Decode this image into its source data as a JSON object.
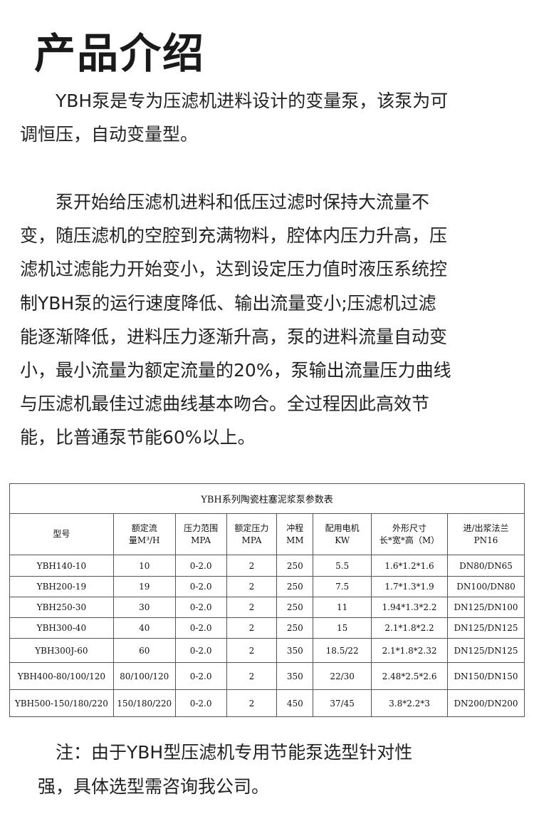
{
  "heading": "产品介绍",
  "para1": [
    "　　YBH泵是专为压滤机进料设计的变量泵，该泵为可",
    "调恒压，自动变量型。"
  ],
  "para2": [
    "　　泵开始给压滤机进料和低压过滤时保持大流量不",
    "变，随压滤机的空腔到充满物料，腔体内压力升高，压",
    "滤机过滤能力开始变小，达到设定压力值时液压系统控",
    "制YBH泵的运行速度降低、输出流量变小;压滤机过滤",
    "能逐渐降低，进料压力逐渐升高，泵的进料流量自动变",
    "小，最小流量为额定流量的20%，泵输出流量压力曲线",
    "与压滤机最佳过滤曲线基本吻合。全过程因此高效节",
    "能，比普通泵节能60%以上。"
  ],
  "table": {
    "caption": "YBH系列陶瓷柱塞泥浆泵参数表",
    "headers": [
      [
        "型号"
      ],
      [
        "额定流",
        "量M³/H"
      ],
      [
        "压力范围",
        "MPA"
      ],
      [
        "额定压力",
        "MPA"
      ],
      [
        "冲程",
        "MM"
      ],
      [
        "配用电机",
        "KW"
      ],
      [
        "外形尺寸",
        "长*宽*高（M）"
      ],
      [
        "进/出浆法兰",
        "PN16"
      ]
    ],
    "rows": [
      [
        "YBH140-10",
        "10",
        "0-2.0",
        "2",
        "250",
        "5.5",
        "1.6*1.2*1.6",
        "DN80/DN65"
      ],
      [
        "YBH200-19",
        "19",
        "0-2.0",
        "2",
        "250",
        "7.5",
        "1.7*1.3*1.9",
        "DN100/DN80"
      ],
      [
        "YBH250-30",
        "30",
        "0-2.0",
        "2",
        "250",
        "11",
        "1.94*1.3*2.2",
        "DN125/DN100"
      ],
      [
        "YBH300-40",
        "40",
        "0-2.0",
        "2",
        "250",
        "15",
        "2.1*1.8*2.2",
        "DN125/DN125"
      ],
      [
        "YBH300J-60",
        "60",
        "0-2.0",
        "2",
        "350",
        "18.5/22",
        "2.1*1.8*2.32",
        "DN125/DN125"
      ],
      [
        "YBH400-80/100/120",
        "80/100/120",
        "0-2.0",
        "2",
        "350",
        "22/30",
        "2.48*2.5*2.6",
        "DN150/DN150"
      ],
      [
        "YBH500-150/180/220",
        "150/180/220",
        "0-2.0",
        "2",
        "450",
        "37/45",
        "3.8*2.2*3",
        "DN200/DN200"
      ]
    ]
  },
  "note": [
    "　　注：由于YBH型压滤机专用节能泵选型针对性",
    "　强，具体选型需咨询我公司。"
  ]
}
